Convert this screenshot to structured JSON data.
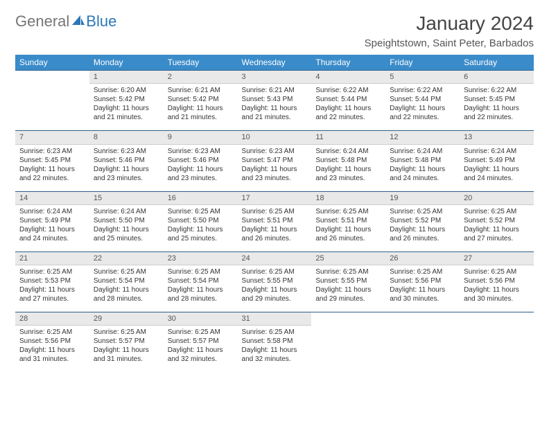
{
  "logo": {
    "general": "General",
    "blue": "Blue"
  },
  "title": "January 2024",
  "location": "Speightstown, Saint Peter, Barbados",
  "colors": {
    "header_bg": "#3a8bc9",
    "header_text": "#ffffff",
    "daynum_bg": "#e9e9e9",
    "border_top": "#2c5f8a",
    "logo_blue": "#2c77b8"
  },
  "weekdays": [
    "Sunday",
    "Monday",
    "Tuesday",
    "Wednesday",
    "Thursday",
    "Friday",
    "Saturday"
  ],
  "weeks": [
    {
      "nums": [
        "",
        "1",
        "2",
        "3",
        "4",
        "5",
        "6"
      ],
      "cells": [
        null,
        {
          "sunrise": "Sunrise: 6:20 AM",
          "sunset": "Sunset: 5:42 PM",
          "daylight": "Daylight: 11 hours and 21 minutes."
        },
        {
          "sunrise": "Sunrise: 6:21 AM",
          "sunset": "Sunset: 5:42 PM",
          "daylight": "Daylight: 11 hours and 21 minutes."
        },
        {
          "sunrise": "Sunrise: 6:21 AM",
          "sunset": "Sunset: 5:43 PM",
          "daylight": "Daylight: 11 hours and 21 minutes."
        },
        {
          "sunrise": "Sunrise: 6:22 AM",
          "sunset": "Sunset: 5:44 PM",
          "daylight": "Daylight: 11 hours and 22 minutes."
        },
        {
          "sunrise": "Sunrise: 6:22 AM",
          "sunset": "Sunset: 5:44 PM",
          "daylight": "Daylight: 11 hours and 22 minutes."
        },
        {
          "sunrise": "Sunrise: 6:22 AM",
          "sunset": "Sunset: 5:45 PM",
          "daylight": "Daylight: 11 hours and 22 minutes."
        }
      ]
    },
    {
      "nums": [
        "7",
        "8",
        "9",
        "10",
        "11",
        "12",
        "13"
      ],
      "cells": [
        {
          "sunrise": "Sunrise: 6:23 AM",
          "sunset": "Sunset: 5:45 PM",
          "daylight": "Daylight: 11 hours and 22 minutes."
        },
        {
          "sunrise": "Sunrise: 6:23 AM",
          "sunset": "Sunset: 5:46 PM",
          "daylight": "Daylight: 11 hours and 23 minutes."
        },
        {
          "sunrise": "Sunrise: 6:23 AM",
          "sunset": "Sunset: 5:46 PM",
          "daylight": "Daylight: 11 hours and 23 minutes."
        },
        {
          "sunrise": "Sunrise: 6:23 AM",
          "sunset": "Sunset: 5:47 PM",
          "daylight": "Daylight: 11 hours and 23 minutes."
        },
        {
          "sunrise": "Sunrise: 6:24 AM",
          "sunset": "Sunset: 5:48 PM",
          "daylight": "Daylight: 11 hours and 23 minutes."
        },
        {
          "sunrise": "Sunrise: 6:24 AM",
          "sunset": "Sunset: 5:48 PM",
          "daylight": "Daylight: 11 hours and 24 minutes."
        },
        {
          "sunrise": "Sunrise: 6:24 AM",
          "sunset": "Sunset: 5:49 PM",
          "daylight": "Daylight: 11 hours and 24 minutes."
        }
      ]
    },
    {
      "nums": [
        "14",
        "15",
        "16",
        "17",
        "18",
        "19",
        "20"
      ],
      "cells": [
        {
          "sunrise": "Sunrise: 6:24 AM",
          "sunset": "Sunset: 5:49 PM",
          "daylight": "Daylight: 11 hours and 24 minutes."
        },
        {
          "sunrise": "Sunrise: 6:24 AM",
          "sunset": "Sunset: 5:50 PM",
          "daylight": "Daylight: 11 hours and 25 minutes."
        },
        {
          "sunrise": "Sunrise: 6:25 AM",
          "sunset": "Sunset: 5:50 PM",
          "daylight": "Daylight: 11 hours and 25 minutes."
        },
        {
          "sunrise": "Sunrise: 6:25 AM",
          "sunset": "Sunset: 5:51 PM",
          "daylight": "Daylight: 11 hours and 26 minutes."
        },
        {
          "sunrise": "Sunrise: 6:25 AM",
          "sunset": "Sunset: 5:51 PM",
          "daylight": "Daylight: 11 hours and 26 minutes."
        },
        {
          "sunrise": "Sunrise: 6:25 AM",
          "sunset": "Sunset: 5:52 PM",
          "daylight": "Daylight: 11 hours and 26 minutes."
        },
        {
          "sunrise": "Sunrise: 6:25 AM",
          "sunset": "Sunset: 5:52 PM",
          "daylight": "Daylight: 11 hours and 27 minutes."
        }
      ]
    },
    {
      "nums": [
        "21",
        "22",
        "23",
        "24",
        "25",
        "26",
        "27"
      ],
      "cells": [
        {
          "sunrise": "Sunrise: 6:25 AM",
          "sunset": "Sunset: 5:53 PM",
          "daylight": "Daylight: 11 hours and 27 minutes."
        },
        {
          "sunrise": "Sunrise: 6:25 AM",
          "sunset": "Sunset: 5:54 PM",
          "daylight": "Daylight: 11 hours and 28 minutes."
        },
        {
          "sunrise": "Sunrise: 6:25 AM",
          "sunset": "Sunset: 5:54 PM",
          "daylight": "Daylight: 11 hours and 28 minutes."
        },
        {
          "sunrise": "Sunrise: 6:25 AM",
          "sunset": "Sunset: 5:55 PM",
          "daylight": "Daylight: 11 hours and 29 minutes."
        },
        {
          "sunrise": "Sunrise: 6:25 AM",
          "sunset": "Sunset: 5:55 PM",
          "daylight": "Daylight: 11 hours and 29 minutes."
        },
        {
          "sunrise": "Sunrise: 6:25 AM",
          "sunset": "Sunset: 5:56 PM",
          "daylight": "Daylight: 11 hours and 30 minutes."
        },
        {
          "sunrise": "Sunrise: 6:25 AM",
          "sunset": "Sunset: 5:56 PM",
          "daylight": "Daylight: 11 hours and 30 minutes."
        }
      ]
    },
    {
      "nums": [
        "28",
        "29",
        "30",
        "31",
        "",
        "",
        ""
      ],
      "cells": [
        {
          "sunrise": "Sunrise: 6:25 AM",
          "sunset": "Sunset: 5:56 PM",
          "daylight": "Daylight: 11 hours and 31 minutes."
        },
        {
          "sunrise": "Sunrise: 6:25 AM",
          "sunset": "Sunset: 5:57 PM",
          "daylight": "Daylight: 11 hours and 31 minutes."
        },
        {
          "sunrise": "Sunrise: 6:25 AM",
          "sunset": "Sunset: 5:57 PM",
          "daylight": "Daylight: 11 hours and 32 minutes."
        },
        {
          "sunrise": "Sunrise: 6:25 AM",
          "sunset": "Sunset: 5:58 PM",
          "daylight": "Daylight: 11 hours and 32 minutes."
        },
        null,
        null,
        null
      ]
    }
  ]
}
